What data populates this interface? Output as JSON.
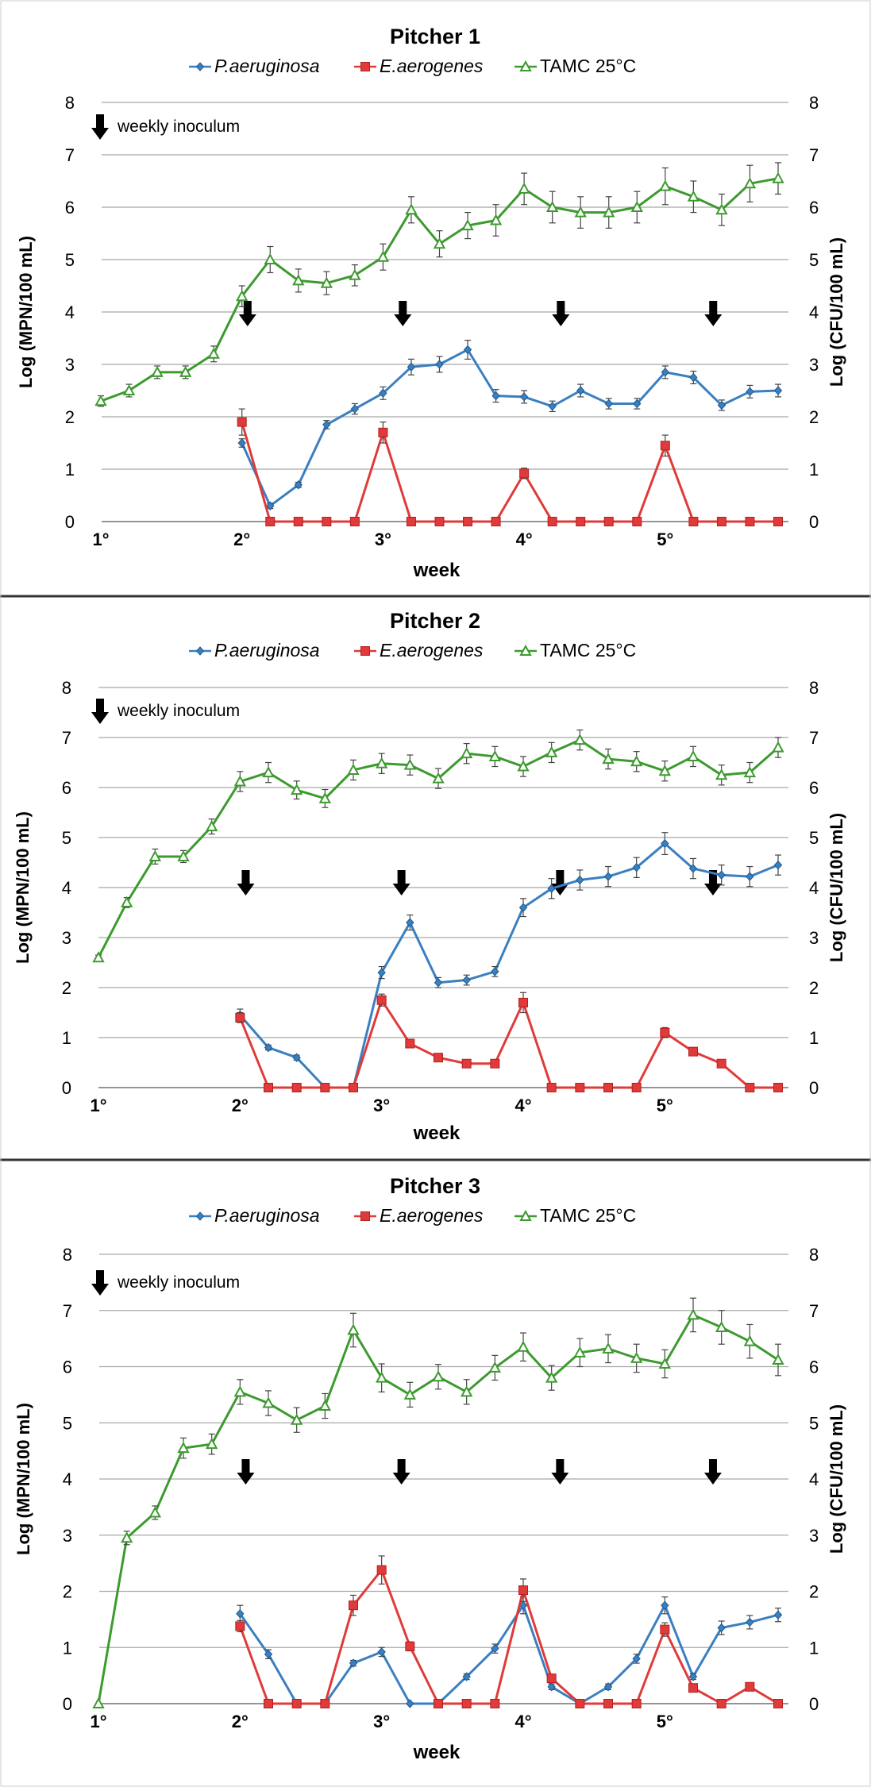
{
  "colors": {
    "pa": "#3a7fc1",
    "ea": "#e03a3a",
    "tamc": "#3d9a2f",
    "grid": "#a8a8a8",
    "errbar": "#444444",
    "arrow": "#000000",
    "divider": "#333333"
  },
  "legend": {
    "pa": "P.aeruginosa",
    "ea": "E.aerogenes",
    "tamc": "TAMC 25°C"
  },
  "chart_data": [
    {
      "type": "line",
      "title": "Pitcher 1",
      "xlabel": "week",
      "ylabel_left": "Log (MPN/100 mL)",
      "ylabel_right": "Log (CFU/100 mL)",
      "ylim": [
        0,
        8
      ],
      "yticks": [
        "0",
        "1",
        "2",
        "3",
        "4",
        "5",
        "6",
        "7",
        "8"
      ],
      "xlim": [
        0,
        24
      ],
      "x_tick_labels": [
        {
          "x": 0,
          "label": "1°"
        },
        {
          "x": 5,
          "label": "2°"
        },
        {
          "x": 10,
          "label": "3°"
        },
        {
          "x": 15,
          "label": "4°"
        },
        {
          "x": 20,
          "label": "5°"
        }
      ],
      "annotation": "weekly inoculum",
      "inoculum_arrows_x": [
        5.2,
        10.7,
        16.3,
        21.7
      ],
      "series": [
        {
          "key": "tamc",
          "name": "TAMC 25°C",
          "marker": "triangle",
          "x": [
            0,
            1,
            2,
            3,
            4,
            5,
            6,
            7,
            8,
            9,
            10,
            11,
            12,
            13,
            14,
            15,
            16,
            17,
            18,
            19,
            20,
            21,
            22,
            23,
            24
          ],
          "y": [
            2.3,
            2.5,
            2.85,
            2.85,
            3.2,
            4.3,
            5.0,
            4.6,
            4.55,
            4.7,
            5.05,
            5.95,
            5.3,
            5.65,
            5.75,
            6.35,
            6.0,
            5.9,
            5.9,
            6.0,
            6.4,
            6.2,
            5.95,
            6.45,
            6.55
          ],
          "err": [
            0.1,
            0.12,
            0.12,
            0.12,
            0.15,
            0.2,
            0.25,
            0.22,
            0.22,
            0.2,
            0.25,
            0.25,
            0.25,
            0.25,
            0.3,
            0.3,
            0.3,
            0.3,
            0.3,
            0.3,
            0.35,
            0.3,
            0.3,
            0.35,
            0.3
          ]
        },
        {
          "key": "pa",
          "name": "P.aeruginosa",
          "marker": "diamond",
          "x": [
            5,
            6,
            7,
            8,
            9,
            10,
            11,
            12,
            13,
            14,
            15,
            16,
            17,
            18,
            19,
            20,
            21,
            22,
            23,
            24
          ],
          "y": [
            1.5,
            0.3,
            0.7,
            1.85,
            2.15,
            2.45,
            2.95,
            3.0,
            3.28,
            2.4,
            2.38,
            2.2,
            2.5,
            2.25,
            2.25,
            2.85,
            2.75,
            2.22,
            2.48,
            2.5
          ],
          "err": [
            0.08,
            0.05,
            0.05,
            0.08,
            0.1,
            0.12,
            0.15,
            0.15,
            0.18,
            0.12,
            0.12,
            0.1,
            0.12,
            0.1,
            0.1,
            0.12,
            0.12,
            0.1,
            0.12,
            0.12
          ]
        },
        {
          "key": "ea",
          "name": "E.aerogenes",
          "marker": "square",
          "x": [
            5,
            6,
            7,
            8,
            9,
            10,
            11,
            12,
            13,
            14,
            15,
            16,
            17,
            18,
            19,
            20,
            21,
            22,
            23,
            24
          ],
          "y": [
            1.9,
            0,
            0,
            0,
            0,
            1.7,
            0,
            0,
            0,
            0,
            0.92,
            0,
            0,
            0,
            0,
            1.45,
            0,
            0,
            0,
            0
          ],
          "err": [
            0.25,
            0,
            0,
            0,
            0,
            0.2,
            0,
            0,
            0,
            0,
            0.1,
            0,
            0,
            0,
            0,
            0.2,
            0,
            0,
            0,
            0
          ]
        }
      ]
    },
    {
      "type": "line",
      "title": "Pitcher 2",
      "xlabel": "week",
      "ylabel_left": "Log (MPN/100 mL)",
      "ylabel_right": "Log (CFU/100 mL)",
      "ylim": [
        0,
        8
      ],
      "yticks": [
        "0",
        "1",
        "2",
        "3",
        "4",
        "5",
        "6",
        "7",
        "8"
      ],
      "xlim": [
        0,
        24
      ],
      "x_tick_labels": [
        {
          "x": 0,
          "label": "1°"
        },
        {
          "x": 5,
          "label": "2°"
        },
        {
          "x": 10,
          "label": "3°"
        },
        {
          "x": 15,
          "label": "4°"
        },
        {
          "x": 20,
          "label": "5°"
        }
      ],
      "annotation": "weekly inoculum",
      "inoculum_arrows_x": [
        5.2,
        10.7,
        16.3,
        21.7
      ],
      "series": [
        {
          "key": "tamc",
          "name": "TAMC 25°C",
          "marker": "triangle",
          "x": [
            0,
            1,
            2,
            3,
            4,
            5,
            6,
            7,
            8,
            9,
            10,
            11,
            12,
            13,
            14,
            15,
            16,
            17,
            18,
            19,
            20,
            21,
            22,
            23,
            24
          ],
          "y": [
            2.6,
            3.7,
            4.62,
            4.62,
            5.22,
            6.12,
            6.3,
            5.95,
            5.78,
            6.35,
            6.48,
            6.45,
            6.18,
            6.68,
            6.62,
            6.42,
            6.7,
            6.95,
            6.57,
            6.52,
            6.33,
            6.62,
            6.25,
            6.3,
            6.8
          ],
          "err": [
            0.05,
            0.1,
            0.15,
            0.12,
            0.15,
            0.2,
            0.2,
            0.18,
            0.18,
            0.2,
            0.2,
            0.2,
            0.2,
            0.2,
            0.2,
            0.2,
            0.2,
            0.2,
            0.2,
            0.2,
            0.2,
            0.2,
            0.2,
            0.2,
            0.2
          ]
        },
        {
          "key": "pa",
          "name": "P.aeruginosa",
          "marker": "diamond",
          "x": [
            5,
            6,
            7,
            8,
            9,
            10,
            11,
            12,
            13,
            14,
            15,
            16,
            17,
            18,
            19,
            20,
            21,
            22,
            23,
            24
          ],
          "y": [
            1.45,
            0.8,
            0.6,
            0,
            0,
            2.3,
            3.3,
            2.1,
            2.15,
            2.32,
            3.6,
            3.98,
            4.15,
            4.22,
            4.4,
            4.88,
            4.38,
            4.25,
            4.22,
            4.45
          ],
          "err": [
            0.12,
            0.05,
            0.05,
            0,
            0,
            0.12,
            0.15,
            0.1,
            0.1,
            0.1,
            0.18,
            0.2,
            0.2,
            0.2,
            0.2,
            0.22,
            0.2,
            0.2,
            0.2,
            0.2
          ]
        },
        {
          "key": "ea",
          "name": "E.aerogenes",
          "marker": "square",
          "x": [
            5,
            6,
            7,
            8,
            9,
            10,
            11,
            12,
            13,
            14,
            15,
            16,
            17,
            18,
            19,
            20,
            21,
            22,
            23,
            24
          ],
          "y": [
            1.4,
            0,
            0,
            0,
            0,
            1.75,
            0.88,
            0.6,
            0.48,
            0.48,
            1.7,
            0,
            0,
            0,
            0,
            1.1,
            0.72,
            0.48,
            0,
            0
          ],
          "err": [
            0.1,
            0,
            0,
            0,
            0,
            0.12,
            0.08,
            0.05,
            0.05,
            0.05,
            0.2,
            0,
            0,
            0,
            0,
            0.1,
            0.05,
            0.05,
            0,
            0
          ]
        }
      ]
    },
    {
      "type": "line",
      "title": "Pitcher 3",
      "xlabel": "week",
      "ylabel_left": "Log (MPN/100 mL)",
      "ylabel_right": "Log (CFU/100 mL)",
      "ylim": [
        0,
        8
      ],
      "yticks": [
        "0",
        "1",
        "2",
        "3",
        "4",
        "5",
        "6",
        "7",
        "8"
      ],
      "xlim": [
        0,
        24
      ],
      "x_tick_labels": [
        {
          "x": 0,
          "label": "1°"
        },
        {
          "x": 5,
          "label": "2°"
        },
        {
          "x": 10,
          "label": "3°"
        },
        {
          "x": 15,
          "label": "4°"
        },
        {
          "x": 20,
          "label": "5°"
        }
      ],
      "annotation": "weekly inoculum",
      "inoculum_arrows_x": [
        5.2,
        10.7,
        16.3,
        21.7
      ],
      "series": [
        {
          "key": "tamc",
          "name": "TAMC 25°C",
          "marker": "triangle",
          "x": [
            0,
            1,
            2,
            3,
            4,
            5,
            6,
            7,
            8,
            9,
            10,
            11,
            12,
            13,
            14,
            15,
            16,
            17,
            18,
            19,
            20,
            21,
            22,
            23,
            24
          ],
          "y": [
            0,
            2.95,
            3.4,
            4.55,
            4.62,
            5.55,
            5.35,
            5.05,
            5.3,
            6.65,
            5.8,
            5.5,
            5.82,
            5.55,
            5.98,
            6.35,
            5.8,
            6.25,
            6.32,
            6.15,
            6.05,
            6.92,
            6.7,
            6.45,
            6.12
          ],
          "err": [
            0,
            0.12,
            0.12,
            0.18,
            0.18,
            0.22,
            0.22,
            0.22,
            0.22,
            0.3,
            0.25,
            0.22,
            0.22,
            0.22,
            0.22,
            0.25,
            0.22,
            0.25,
            0.25,
            0.25,
            0.25,
            0.3,
            0.3,
            0.3,
            0.28
          ]
        },
        {
          "key": "pa",
          "name": "P.aeruginosa",
          "marker": "diamond",
          "x": [
            5,
            6,
            7,
            8,
            9,
            10,
            11,
            12,
            13,
            14,
            15,
            16,
            17,
            18,
            19,
            20,
            21,
            22,
            23,
            24
          ],
          "y": [
            1.6,
            0.88,
            0,
            0,
            0.72,
            0.92,
            0,
            0,
            0.48,
            0.98,
            1.75,
            0.3,
            0,
            0.3,
            0.8,
            1.75,
            0.48,
            1.35,
            1.45,
            1.58
          ],
          "err": [
            0.15,
            0.08,
            0,
            0,
            0.05,
            0.08,
            0,
            0,
            0.05,
            0.08,
            0.15,
            0.05,
            0,
            0.05,
            0.08,
            0.15,
            0.05,
            0.12,
            0.12,
            0.12
          ]
        },
        {
          "key": "ea",
          "name": "E.aerogenes",
          "marker": "square",
          "x": [
            5,
            6,
            7,
            8,
            9,
            10,
            11,
            12,
            13,
            14,
            15,
            16,
            17,
            18,
            19,
            20,
            21,
            22,
            23,
            24
          ],
          "y": [
            1.38,
            0,
            0,
            0,
            1.75,
            2.38,
            1.02,
            0,
            0,
            0,
            2.02,
            0.45,
            0,
            0,
            0,
            1.32,
            0.28,
            0,
            0.3,
            0
          ],
          "err": [
            0.1,
            0,
            0,
            0,
            0.18,
            0.25,
            0.08,
            0,
            0,
            0,
            0.2,
            0.05,
            0,
            0,
            0,
            0.12,
            0.05,
            0,
            0.05,
            0
          ]
        }
      ]
    }
  ]
}
